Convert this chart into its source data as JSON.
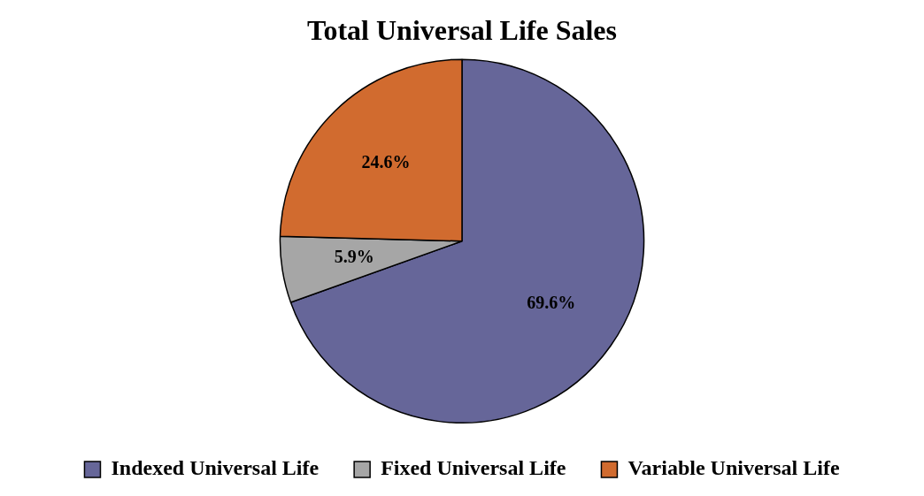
{
  "chart_data": {
    "type": "pie",
    "title": "Total Universal Life Sales",
    "categories": [
      "Indexed Universal Life",
      "Fixed Universal Life",
      "Variable Universal Life"
    ],
    "values": [
      69.6,
      5.9,
      24.6
    ],
    "colors": [
      "#666699",
      "#a6a6a6",
      "#d16b2f"
    ],
    "value_labels": [
      "69.6%",
      "5.9%",
      "24.6%"
    ],
    "legend": "bottom"
  }
}
